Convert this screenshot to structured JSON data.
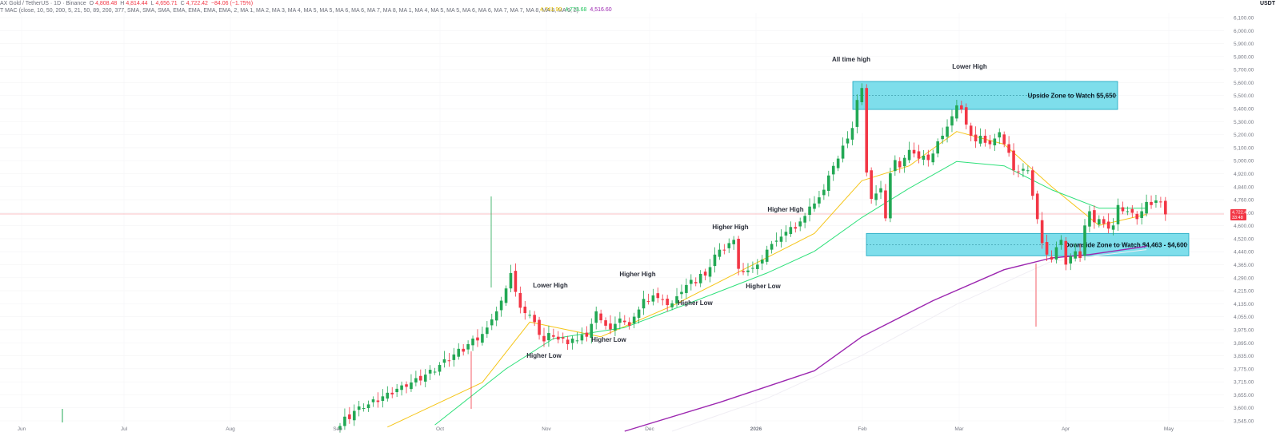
{
  "header": {
    "symbol": "AX Gold / TetherUS · 1D · Binance",
    "o_label": "O",
    "o": "4,808.48",
    "h_label": "H",
    "h": "4,814.44",
    "l_label": "L",
    "l": "4,656.71",
    "c_label": "C",
    "c": "4,722.42",
    "change": "−84.06 (−1.75%)",
    "indicator": "T MAC (close, 10, 50, 200, 5, 21, 50, 89, 200, 377, SMA, SMA, SMA, EMA, EMA, EMA, EMA, 2, MA 1, MA 2, MA 3, MA 4, MA 5, MA 5, MA 6, MA 6, MA 7, MA 8, MA 1, MA 4, MA 5, MA 5, MA 6, MA 6, MA 7, MA 7, MA 8, MA 8, MA 9, 2)",
    "ma_values": [
      "4,741.90",
      "4,773.68",
      "4,516.60"
    ],
    "currency": "USDT"
  },
  "price_tag": {
    "price": "4,722.42",
    "countdown": "33:48"
  },
  "colors": {
    "up": "#22a854",
    "down": "#f23645",
    "ma_fast": "#f5c518",
    "ma_mid": "#2ee07a",
    "ma_slow": "#9c27b0",
    "ma_slowest": "#f0eef4",
    "zone_fill": "#5ed6e6",
    "zone_stroke": "#1aa6bf"
  },
  "chart_data": {
    "type": "candlestick",
    "y_axis_labels": [
      "6,100.00",
      "6,000.00",
      "5,900.00",
      "5,800.00",
      "5,700.00",
      "5,600.00",
      "5,500.00",
      "5,400.00",
      "5,300.00",
      "5,200.00",
      "5,100.00",
      "5,000.00",
      "4,920.00",
      "4,840.00",
      "4,760.00",
      "4,680.00",
      "4,600.00",
      "4,520.00",
      "4,440.00",
      "4,365.00",
      "4,290.00",
      "4,215.00",
      "4,135.00",
      "4,055.00",
      "3,975.00",
      "3,895.00",
      "3,835.00",
      "3,775.00",
      "3,715.00",
      "3,655.00",
      "3,600.00",
      "3,545.00"
    ],
    "x_axis_labels": [
      "Jun",
      "Jul",
      "Aug",
      "Sep",
      "Oct",
      "Nov",
      "Dec",
      "2026",
      "Feb",
      "Mar",
      "Apr",
      "May"
    ],
    "y_scale": "log",
    "ylim": [
      3520,
      6200
    ],
    "candles_start": "2025-09-01",
    "candles_close": [
      3545,
      3590,
      3578,
      3618,
      3640,
      3632,
      3650,
      3675,
      3662,
      3690,
      3708,
      3700,
      3728,
      3745,
      3738,
      3760,
      3782,
      3770,
      3800,
      3825,
      3815,
      3850,
      3880,
      3870,
      3905,
      3935,
      3920,
      3960,
      3990,
      3980,
      4015,
      4050,
      4095,
      4140,
      4200,
      4270,
      4360,
      4250,
      4160,
      4130,
      4120,
      4080,
      4010,
      3975,
      4020,
      4000,
      3985,
      3990,
      3960,
      3990,
      3980,
      4010,
      4000,
      4070,
      4140,
      4090,
      4060,
      4040,
      4070,
      4100,
      4080,
      4060,
      4110,
      4150,
      4210,
      4195,
      4230,
      4215,
      4205,
      4175,
      4185,
      4225,
      4250,
      4290,
      4320,
      4300,
      4355,
      4345,
      4395,
      4470,
      4500,
      4495,
      4540,
      4560,
      4385,
      4365,
      4375,
      4390,
      4410,
      4440,
      4500,
      4535,
      4555,
      4580,
      4610,
      4640,
      4630,
      4675,
      4710,
      4770,
      4790,
      4830,
      4880,
      4975,
      5040,
      5090,
      5180,
      5230,
      5305,
      5510,
      5600,
      4995,
      4820,
      4855,
      4890,
      4695,
      4990,
      5080,
      5030,
      5095,
      5150,
      5125,
      5090,
      5110,
      5080,
      5125,
      5210,
      5250,
      5315,
      5390,
      5470,
      5440,
      5330,
      5250,
      5210,
      5250,
      5200,
      5190,
      5230,
      5275,
      5190,
      5130,
      5010,
      5000,
      5020,
      5010,
      4840,
      4690,
      4540,
      4470,
      4440,
      4515,
      4560,
      4410,
      4460,
      4490,
      4450,
      4650,
      4740,
      4670,
      4690,
      4660,
      4630,
      4650,
      4780,
      4740,
      4740,
      4730,
      4690,
      4740,
      4800,
      4780,
      4810,
      4800,
      4720
    ],
    "candle_open_offsets_note": "",
    "moving_averages": [
      {
        "start_index": 10,
        "values_at": [
          [
            10,
            3540
          ],
          [
            30,
            3760
          ],
          [
            40,
            4080
          ],
          [
            55,
            4000
          ],
          [
            70,
            4170
          ],
          [
            85,
            4380
          ],
          [
            100,
            4600
          ],
          [
            110,
            4940
          ],
          [
            120,
            5040
          ],
          [
            130,
            5280
          ],
          [
            140,
            5190
          ],
          [
            150,
            4900
          ],
          [
            160,
            4650
          ],
          [
            170,
            4720
          ]
        ]
      },
      {
        "start_index": 20,
        "values_at": [
          [
            20,
            3550
          ],
          [
            35,
            3830
          ],
          [
            45,
            3990
          ],
          [
            60,
            4050
          ],
          [
            75,
            4200
          ],
          [
            90,
            4360
          ],
          [
            100,
            4490
          ],
          [
            110,
            4700
          ],
          [
            120,
            4890
          ],
          [
            130,
            5070
          ],
          [
            140,
            5040
          ],
          [
            150,
            4880
          ],
          [
            160,
            4760
          ],
          [
            170,
            4760
          ]
        ]
      },
      {
        "start_index": 60,
        "values_at": [
          [
            60,
            3520
          ],
          [
            80,
            3660
          ],
          [
            100,
            3820
          ],
          [
            110,
            4000
          ],
          [
            125,
            4200
          ],
          [
            140,
            4380
          ],
          [
            150,
            4450
          ],
          [
            158,
            4470
          ],
          [
            170,
            4520
          ]
        ]
      },
      {
        "start_index": 70,
        "values_at": [
          [
            70,
            3520
          ],
          [
            90,
            3680
          ],
          [
            110,
            3900
          ],
          [
            130,
            4180
          ],
          [
            150,
            4430
          ],
          [
            170,
            4500
          ]
        ]
      }
    ],
    "annotations": [
      "All time high",
      "Lower High",
      "Lower High",
      "Higher High",
      "Higher High",
      "Higher High",
      "Higher Low",
      "Higher Low",
      "Higher Low",
      "Higher Low"
    ],
    "annotation_labels": {
      "all_time_high": "All time high",
      "lower_high_1": "Lower High",
      "lower_high_2": "Lower High",
      "higher_high_1": "Higher High",
      "higher_high_2": "Higher High",
      "higher_high_3": "Higher High",
      "higher_low_1": "Higher Low",
      "higher_low_2": "Higher Low",
      "higher_low_3": "Higher Low",
      "higher_low_4": "Higher Low"
    },
    "zones": [
      {
        "label": "Upside Zone to Watch $5,650",
        "low": 5440,
        "high": 5650
      },
      {
        "label": "Downside Zone to Watch $4,463 - $4,600",
        "low": 4463,
        "high": 4600
      }
    ],
    "current_price": 4722.42
  }
}
